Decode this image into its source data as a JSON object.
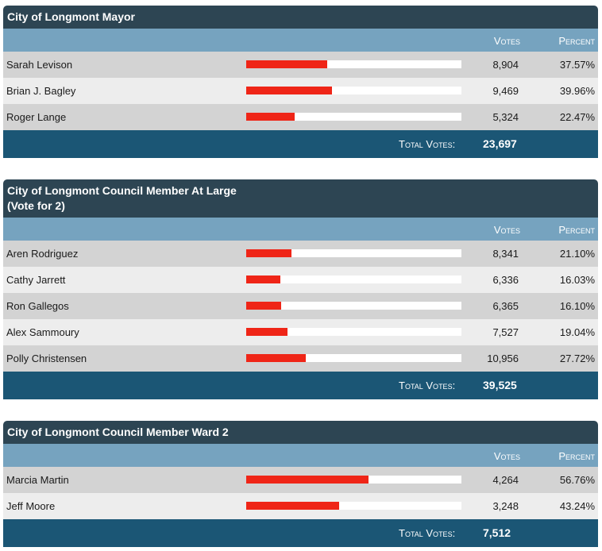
{
  "races": [
    {
      "title_lines": [
        "City of Longmont Mayor"
      ],
      "header": {
        "votes": "Votes",
        "percent": "Percent"
      },
      "candidates": [
        {
          "name": "Sarah Levison",
          "votes": "8,904",
          "percent": "37.57%",
          "share": 0.3757
        },
        {
          "name": "Brian J. Bagley",
          "votes": "9,469",
          "percent": "39.96%",
          "share": 0.3996
        },
        {
          "name": "Roger Lange",
          "votes": "5,324",
          "percent": "22.47%",
          "share": 0.2247
        }
      ],
      "total_label": "Total Votes:",
      "total_votes": "23,697"
    },
    {
      "title_lines": [
        "City of Longmont Council Member At Large",
        "(Vote for 2)"
      ],
      "header": {
        "votes": "Votes",
        "percent": "Percent"
      },
      "candidates": [
        {
          "name": "Aren Rodriguez",
          "votes": "8,341",
          "percent": "21.10%",
          "share": 0.211
        },
        {
          "name": "Cathy Jarrett",
          "votes": "6,336",
          "percent": "16.03%",
          "share": 0.1603
        },
        {
          "name": "Ron Gallegos",
          "votes": "6,365",
          "percent": "16.10%",
          "share": 0.161
        },
        {
          "name": "Alex Sammoury",
          "votes": "7,527",
          "percent": "19.04%",
          "share": 0.1904
        },
        {
          "name": "Polly Christensen",
          "votes": "10,956",
          "percent": "27.72%",
          "share": 0.2772
        }
      ],
      "total_label": "Total Votes:",
      "total_votes": "39,525"
    },
    {
      "title_lines": [
        "City of Longmont Council Member Ward 2"
      ],
      "header": {
        "votes": "Votes",
        "percent": "Percent"
      },
      "candidates": [
        {
          "name": "Marcia Martin",
          "votes": "4,264",
          "percent": "56.76%",
          "share": 0.5676
        },
        {
          "name": "Jeff Moore",
          "votes": "3,248",
          "percent": "43.24%",
          "share": 0.4324
        }
      ],
      "total_label": "Total Votes:",
      "total_votes": "7,512"
    }
  ],
  "colors": {
    "title_bg": "#2d4553",
    "header_bg": "#76a3bf",
    "total_bg": "#1b5675",
    "bar_fill": "#ef2517",
    "row_odd": "#d3d3d3",
    "row_even": "#ededed"
  }
}
